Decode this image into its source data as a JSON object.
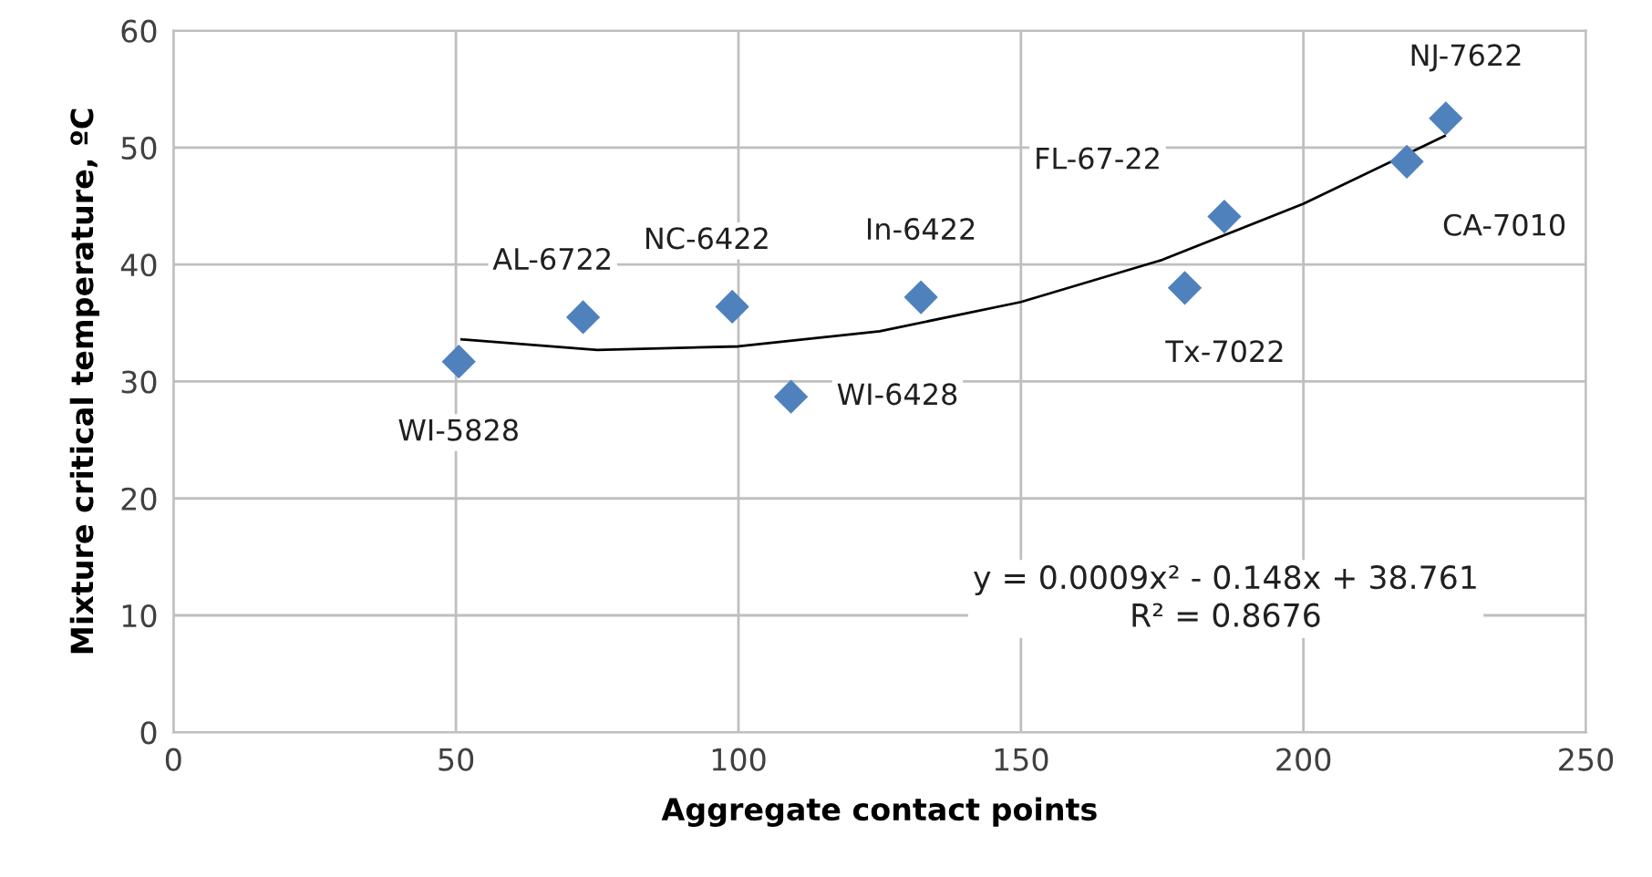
{
  "chart_data": {
    "type": "scatter",
    "xlabel": "Aggregate contact points",
    "ylabel": "Mixture critical temperature, ºC",
    "xlim": [
      0,
      250
    ],
    "xticks": [
      0,
      50,
      100,
      150,
      200,
      250
    ],
    "ylim": [
      0,
      60
    ],
    "yticks": [
      0,
      10,
      20,
      30,
      40,
      50,
      60
    ],
    "grid": true,
    "marker": "diamond",
    "series": [
      {
        "color": "#4f81bd",
        "x": [
          50.5,
          72.5,
          98.9,
          109.3,
          132.3,
          179,
          186,
          218.3,
          225.2
        ],
        "values": [
          31.7,
          35.5,
          36.4,
          28.7,
          37.2,
          38.0,
          44.1,
          48.8,
          52.5
        ]
      },
      {
        "type": "line",
        "color": "#000000",
        "marker": "none",
        "x": [
          51,
          75,
          100,
          125,
          150,
          175,
          200,
          225
        ],
        "values": [
          33.6,
          32.7,
          33.0,
          34.3,
          36.8,
          40.4,
          45.2,
          51.0
        ]
      }
    ],
    "annotations": [
      {
        "text": "WI-5828",
        "x": 50.5,
        "y": 31.7
      },
      {
        "text": "AL-6722",
        "x": 72.5,
        "y": 35.5
      },
      {
        "text": "NC-6422",
        "x": 98.9,
        "y": 36.4
      },
      {
        "text": "WI-6428",
        "x": 109.3,
        "y": 28.7
      },
      {
        "text": "In-6422",
        "x": 132.3,
        "y": 37.2
      },
      {
        "text": "Tx-7022",
        "x": 179,
        "y": 38.0
      },
      {
        "text": "FL-67-22",
        "x": 186,
        "y": 44.1
      },
      {
        "text": "CA-7010",
        "x": 218.3,
        "y": 48.8
      },
      {
        "text": "NJ-7622",
        "x": 225.2,
        "y": 52.5
      },
      "y = 0.0009x² - 0.148x + 38.761\nR² = 0.8676"
    ]
  }
}
